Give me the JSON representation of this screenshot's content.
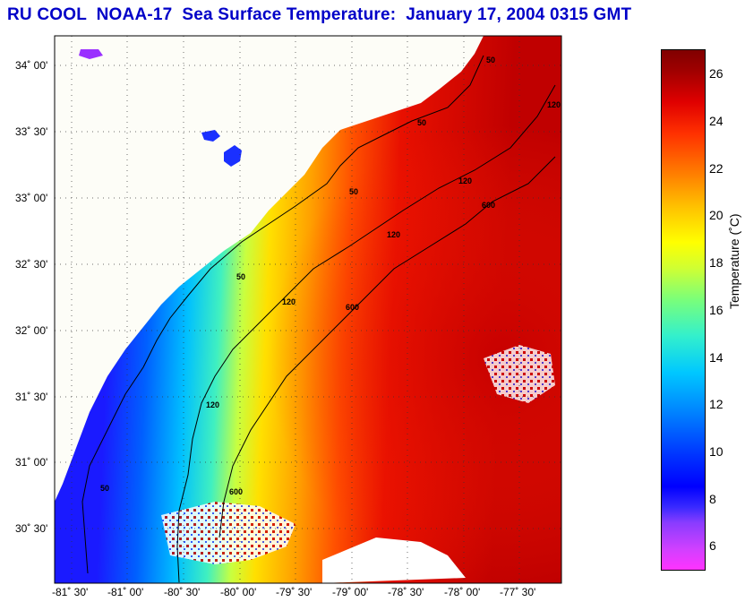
{
  "title": "RU COOL  NOAA-17  Sea Surface Temperature:  January 17, 2004 0315 GMT",
  "lat_labels": [
    "34˚ 00'",
    "33˚ 30'",
    "33˚ 00'",
    "32˚ 30'",
    "32˚ 00'",
    "31˚ 30'",
    "31˚ 00'",
    "30˚ 30'"
  ],
  "lon_labels": [
    "-81˚ 30'",
    "-81˚ 00'",
    "-80˚ 30'",
    "-80˚ 00'",
    "-79˚ 30'",
    "-79˚ 00'",
    "-78˚ 30'",
    "-78˚ 00'",
    "-77˚ 30'"
  ],
  "colorbar": {
    "label": "Temperature (˚C)",
    "ticks": [
      "26",
      "24",
      "22",
      "20",
      "18",
      "16",
      "14",
      "12",
      "10",
      "8",
      "6"
    ],
    "min": 5,
    "max": 27
  },
  "contour_labels": [
    "50",
    "120",
    "600"
  ],
  "colors": {
    "title": "#0000c8",
    "land": "#fdfdf7",
    "cold": "#0000ff",
    "warm": "#cc0000"
  }
}
